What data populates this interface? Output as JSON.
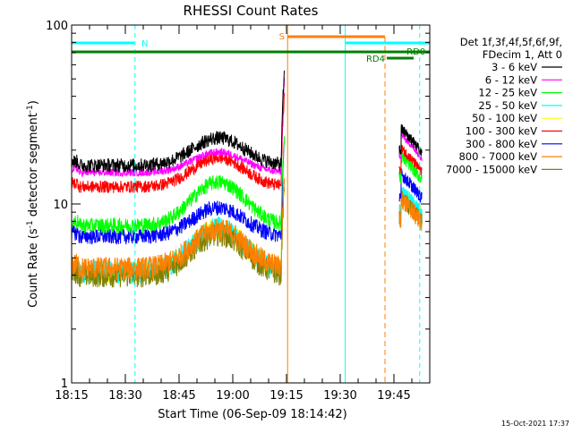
{
  "chart_data": {
    "type": "line",
    "title": "RHESSI Count Rates",
    "xlabel": "Start Time (06-Sep-09 18:14:42)",
    "ylabel_main": "Count Rate (s",
    "ylabel_sup1": "-1",
    "ylabel_mid": " detector segment",
    "ylabel_sup2": "-1",
    "ylabel_end": ")",
    "yscale": "log",
    "ylim": [
      1,
      100
    ],
    "xlim_minutes": [
      0,
      100
    ],
    "x_ticks": [
      {
        "label": "18:15",
        "t": 0
      },
      {
        "label": "18:30",
        "t": 15
      },
      {
        "label": "18:45",
        "t": 30
      },
      {
        "label": "19:00",
        "t": 45
      },
      {
        "label": "19:15",
        "t": 60
      },
      {
        "label": "19:30",
        "t": 75
      },
      {
        "label": "19:45",
        "t": 90
      }
    ],
    "y_ticks": [
      {
        "label": "1",
        "v": 1
      },
      {
        "label": "10",
        "v": 10
      },
      {
        "label": "100",
        "v": 100
      }
    ],
    "legend_header": [
      "Det 1f,3f,4f,5f,6f,9f,",
      "FDecim 1, Att 0"
    ],
    "legend_placement": "right",
    "series": [
      {
        "name": "3 - 6 keV",
        "color": "#000000"
      },
      {
        "name": "6 - 12 keV",
        "color": "#ff00ff"
      },
      {
        "name": "12 - 25 keV",
        "color": "#00ff00"
      },
      {
        "name": "25 - 50 keV",
        "color": "#00ffff"
      },
      {
        "name": "50 - 100 keV",
        "color": "#ffff00"
      },
      {
        "name": "100 - 300 keV",
        "color": "#ff0000"
      },
      {
        "name": "300 - 800 keV",
        "color": "#0000ff"
      },
      {
        "name": "800 - 7000 keV",
        "color": "#ff8000"
      },
      {
        "name": "7000 - 15000 keV",
        "color": "#808000"
      }
    ],
    "flags": [
      {
        "label": "N",
        "color": "#00ffff"
      },
      {
        "label": "S",
        "color": "#ff8000"
      },
      {
        "label": "RD0",
        "color": "#008000"
      },
      {
        "label": "RD4",
        "color": "#008000"
      }
    ],
    "timestamp": "15-Oct-2021 17:37"
  }
}
